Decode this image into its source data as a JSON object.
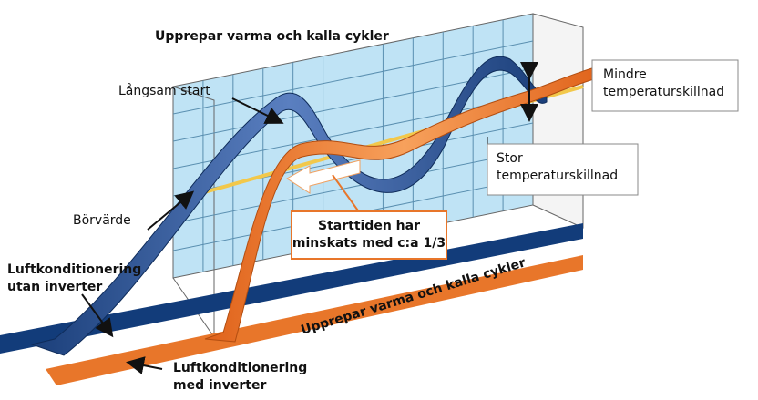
{
  "title": "Upprepar varma och kalla cykler",
  "labels": {
    "slow_start": "Långsam start",
    "smaller_diff": [
      "Mindre",
      "temperaturskillnad"
    ],
    "large_diff": [
      "Stor",
      "temperaturskillnad"
    ],
    "start_time": [
      "Starttiden har",
      "minskats med c:a 1/3"
    ],
    "setpoint": "Börvärde",
    "without_inverter": [
      "Luftkonditionering",
      "utan inverter"
    ],
    "cycles_bottom": "Upprepar varma och kalla cykler",
    "with_inverter": [
      "Luftkonditionering",
      "med inverter"
    ]
  }
}
